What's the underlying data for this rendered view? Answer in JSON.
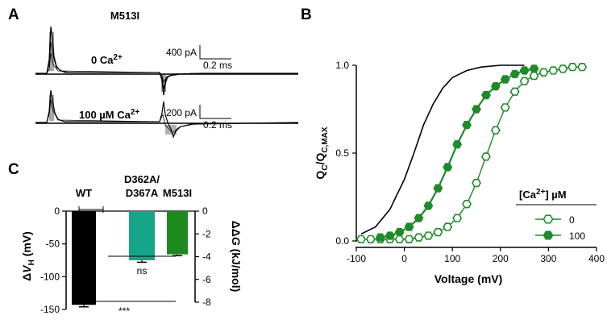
{
  "panels": {
    "a": {
      "letter": "A",
      "construct": "M513I",
      "trace1": {
        "label": "0 Ca2+",
        "scale_current": "400 pA",
        "scale_time": "0.2 ms"
      },
      "trace2": {
        "label": "100 µM Ca2+",
        "scale_current": "200 pA",
        "scale_time": "0.2 ms"
      }
    },
    "b": {
      "letter": "B"
    },
    "c": {
      "letter": "C",
      "significance_inner": "ns",
      "significance_outer": "***"
    }
  },
  "chart_data": [
    {
      "type": "scatter",
      "panel": "B",
      "xlabel": "Voltage (mV)",
      "ylabel": "QC/QC,MAX",
      "xlim": [
        -100,
        400
      ],
      "ylim": [
        0,
        1.0
      ],
      "xticks": [
        "-100",
        "0",
        "100",
        "200",
        "300",
        "400"
      ],
      "yticks": [
        "0.0",
        "0.5",
        "1.0"
      ],
      "legend": {
        "title": "[Ca2+] µM",
        "placement": "right-center"
      },
      "series": [
        {
          "name": "0",
          "marker": "open-hexagon",
          "color": "#1f8a2a",
          "x": [
            -90,
            -70,
            -50,
            -30,
            -10,
            10,
            30,
            50,
            70,
            90,
            110,
            130,
            150,
            170,
            190,
            210,
            230,
            250,
            270,
            290,
            310,
            330,
            350,
            370
          ],
          "y": [
            0.01,
            0.01,
            0.01,
            0.01,
            0.01,
            0.01,
            0.02,
            0.03,
            0.05,
            0.08,
            0.13,
            0.21,
            0.33,
            0.48,
            0.63,
            0.76,
            0.85,
            0.91,
            0.94,
            0.96,
            0.97,
            0.98,
            0.99,
            0.99
          ]
        },
        {
          "name": "100",
          "marker": "filled-hexagon",
          "color": "#1f8a2a",
          "x": [
            -50,
            -30,
            -10,
            10,
            30,
            50,
            70,
            90,
            110,
            130,
            150,
            170,
            190,
            210,
            230,
            250,
            270
          ],
          "y": [
            0.02,
            0.03,
            0.05,
            0.08,
            0.13,
            0.2,
            0.3,
            0.42,
            0.55,
            0.66,
            0.75,
            0.83,
            0.88,
            0.92,
            0.95,
            0.97,
            0.98
          ]
        }
      ],
      "reference_curve": {
        "color": "#000000",
        "x": [
          -90,
          -60,
          -30,
          0,
          20,
          40,
          60,
          80,
          100,
          130,
          160,
          200,
          250
        ],
        "y": [
          0.04,
          0.08,
          0.18,
          0.35,
          0.5,
          0.66,
          0.78,
          0.87,
          0.93,
          0.97,
          0.99,
          1.0,
          1.0
        ]
      }
    },
    {
      "type": "bar",
      "panel": "C",
      "categories": [
        "WT",
        "D362A/\nD367A",
        "M513I"
      ],
      "category_lines": [
        [
          "WT"
        ],
        [
          "D362A/",
          "D367A"
        ],
        [
          "M513I"
        ]
      ],
      "values": [
        -143,
        -75,
        -66
      ],
      "errors": [
        3,
        3,
        2
      ],
      "colors": [
        "#000000",
        "#17a589",
        "#1e8a1e"
      ],
      "ylabel": "ΔVH (mV)",
      "ylim": [
        -150,
        0
      ],
      "yticks": [
        "0",
        "-50",
        "-100",
        "-150"
      ],
      "y2label": "ΔΔG (kJ/mol)",
      "y2lim": [
        -8,
        0
      ],
      "y2ticks": [
        "0",
        "-2",
        "-4",
        "-6",
        "-8"
      ]
    }
  ]
}
